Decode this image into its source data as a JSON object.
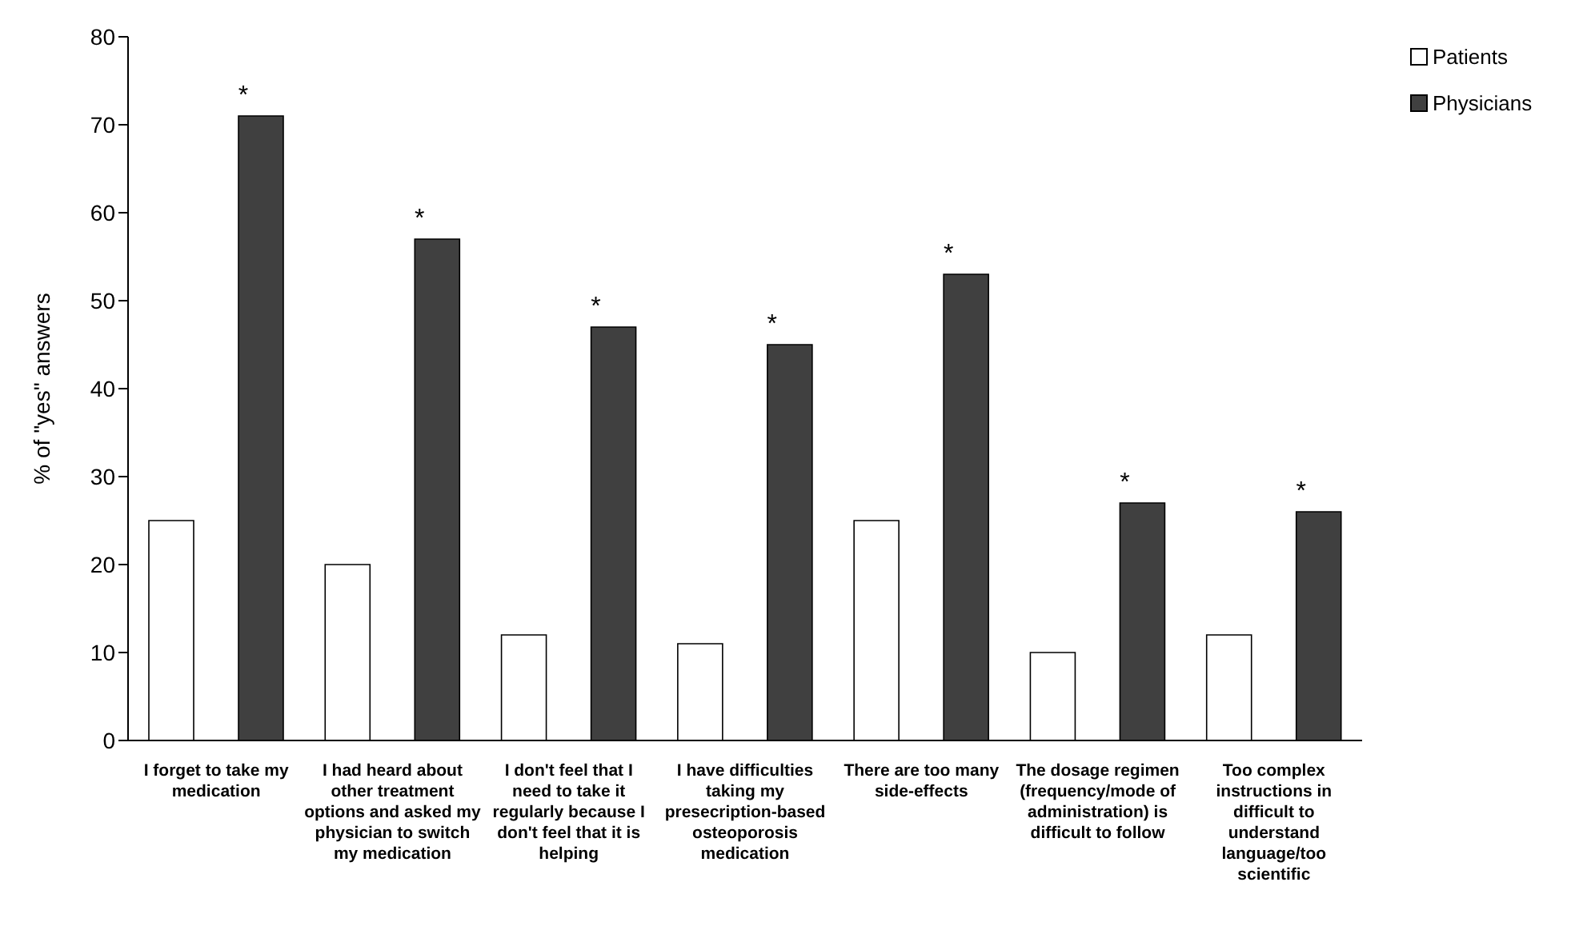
{
  "chart_data": {
    "type": "bar",
    "ylabel": "% of \"yes\" answers",
    "categories": [
      "I forget to take my medication",
      "I had heard about other treatment options and asked my physician to switch my medication",
      "I don't feel that I need to take it regularly because I don't feel that it is helping",
      "I have difficulties taking my presecription-based osteoporosis medication",
      "There are too many side-effects",
      "The dosage regimen (frequency/mode of administration) is difficult to follow",
      "Too complex instructions in difficult to understand language/too scientific"
    ],
    "series": [
      {
        "name": "Patients",
        "color": "#ffffff",
        "values": [
          25,
          20,
          12,
          11,
          25,
          10,
          12
        ]
      },
      {
        "name": "Physicians",
        "color": "#404040",
        "values": [
          71,
          57,
          47,
          45,
          53,
          27,
          26
        ]
      }
    ],
    "annotations": [
      "*",
      "*",
      "*",
      "*",
      "*",
      "*",
      "*"
    ],
    "ylim": [
      0,
      80
    ],
    "yticks": [
      0,
      10,
      20,
      30,
      40,
      50,
      60,
      70,
      80
    ],
    "grid": false,
    "legend": "top right"
  }
}
